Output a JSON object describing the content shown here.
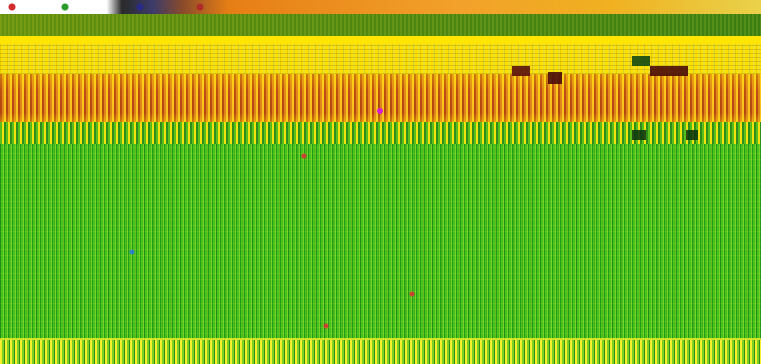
{
  "visible_text": []
}
